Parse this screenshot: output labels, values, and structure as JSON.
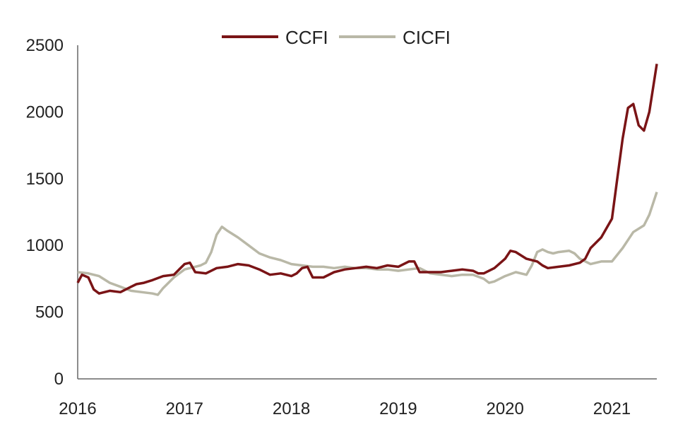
{
  "chart_data": {
    "type": "line",
    "title": "",
    "xlabel": "",
    "ylabel": "",
    "xlim": [
      2016,
      2021.42
    ],
    "ylim": [
      0,
      2500
    ],
    "x_ticks": [
      "2016",
      "2017",
      "2018",
      "2019",
      "2020",
      "2021"
    ],
    "y_ticks": [
      "0",
      "500",
      "1000",
      "1500",
      "2000",
      "2500"
    ],
    "grid": false,
    "legend_position": "top",
    "series": [
      {
        "name": "CCFI",
        "color": "#7a1416",
        "x": [
          2016.0,
          2016.04,
          2016.1,
          2016.15,
          2016.2,
          2016.3,
          2016.4,
          2016.5,
          2016.55,
          2016.62,
          2016.7,
          2016.8,
          2016.9,
          2017.0,
          2017.05,
          2017.1,
          2017.2,
          2017.3,
          2017.4,
          2017.5,
          2017.6,
          2017.7,
          2017.8,
          2017.9,
          2018.0,
          2018.05,
          2018.1,
          2018.15,
          2018.2,
          2018.3,
          2018.4,
          2018.5,
          2018.6,
          2018.7,
          2018.8,
          2018.9,
          2019.0,
          2019.1,
          2019.15,
          2019.2,
          2019.3,
          2019.4,
          2019.5,
          2019.6,
          2019.7,
          2019.75,
          2019.8,
          2019.9,
          2020.0,
          2020.05,
          2020.1,
          2020.2,
          2020.3,
          2020.35,
          2020.4,
          2020.5,
          2020.6,
          2020.7,
          2020.75,
          2020.8,
          2020.9,
          2021.0,
          2021.05,
          2021.1,
          2021.15,
          2021.2,
          2021.25,
          2021.3,
          2021.35,
          2021.42
        ],
        "values": [
          720,
          780,
          760,
          670,
          640,
          660,
          650,
          690,
          710,
          720,
          740,
          770,
          780,
          860,
          870,
          800,
          790,
          830,
          840,
          860,
          850,
          820,
          780,
          790,
          770,
          790,
          830,
          840,
          760,
          760,
          800,
          820,
          830,
          840,
          830,
          850,
          840,
          880,
          880,
          800,
          800,
          800,
          810,
          820,
          810,
          790,
          790,
          830,
          900,
          960,
          950,
          900,
          880,
          850,
          830,
          840,
          850,
          870,
          900,
          980,
          1060,
          1200,
          1500,
          1800,
          2030,
          2060,
          1900,
          1860,
          2000,
          2360
        ]
      },
      {
        "name": "CICFI",
        "color": "#b9b8a7",
        "x": [
          2016.0,
          2016.1,
          2016.2,
          2016.3,
          2016.4,
          2016.5,
          2016.6,
          2016.7,
          2016.75,
          2016.8,
          2016.9,
          2017.0,
          2017.1,
          2017.15,
          2017.2,
          2017.25,
          2017.3,
          2017.35,
          2017.4,
          2017.5,
          2017.6,
          2017.7,
          2017.8,
          2017.9,
          2018.0,
          2018.1,
          2018.2,
          2018.3,
          2018.4,
          2018.5,
          2018.6,
          2018.7,
          2018.8,
          2018.9,
          2019.0,
          2019.1,
          2019.2,
          2019.3,
          2019.4,
          2019.5,
          2019.6,
          2019.7,
          2019.8,
          2019.85,
          2019.9,
          2020.0,
          2020.1,
          2020.2,
          2020.25,
          2020.3,
          2020.35,
          2020.4,
          2020.45,
          2020.5,
          2020.6,
          2020.65,
          2020.7,
          2020.8,
          2020.9,
          2021.0,
          2021.1,
          2021.2,
          2021.3,
          2021.35,
          2021.42
        ],
        "values": [
          800,
          790,
          770,
          720,
          690,
          660,
          650,
          640,
          630,
          680,
          760,
          820,
          840,
          850,
          870,
          950,
          1080,
          1140,
          1110,
          1060,
          1000,
          940,
          910,
          890,
          860,
          850,
          840,
          840,
          830,
          840,
          830,
          830,
          820,
          820,
          810,
          820,
          830,
          790,
          780,
          770,
          780,
          780,
          750,
          720,
          730,
          770,
          800,
          780,
          850,
          950,
          970,
          950,
          940,
          950,
          960,
          940,
          900,
          860,
          880,
          880,
          980,
          1100,
          1150,
          1230,
          1400
        ]
      }
    ]
  }
}
